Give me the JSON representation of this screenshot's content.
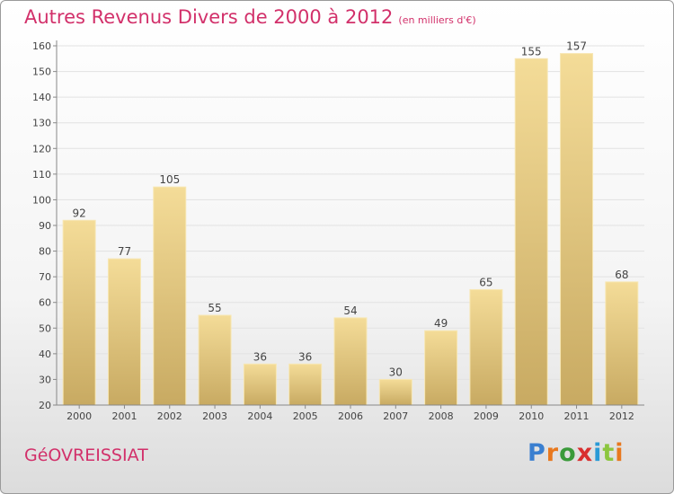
{
  "header": {
    "title": "Autres Revenus Divers de 2000 à 2012",
    "unit": "(en milliers d'€)"
  },
  "footer": {
    "commune": "GéOVREISSIAT",
    "logo": {
      "letters": [
        "P",
        "r",
        "o",
        "x",
        "i",
        "t",
        "i"
      ],
      "colors": [
        "#3a7fd0",
        "#e8781e",
        "#3a9a3a",
        "#d92f2f",
        "#2a9ad6",
        "#8cc63f",
        "#e8781e"
      ]
    }
  },
  "chart_data": {
    "type": "bar",
    "categories": [
      "2000",
      "2001",
      "2002",
      "2003",
      "2004",
      "2005",
      "2006",
      "2007",
      "2008",
      "2009",
      "2010",
      "2011",
      "2012"
    ],
    "values": [
      92,
      77,
      105,
      55,
      36,
      36,
      54,
      30,
      49,
      65,
      155,
      157,
      68
    ],
    "title": "Autres Revenus Divers de 2000 à 2012",
    "ylim": [
      20,
      160
    ],
    "yticks": [
      20,
      30,
      40,
      50,
      60,
      70,
      80,
      90,
      100,
      110,
      120,
      130,
      140,
      150,
      160
    ],
    "grid": true,
    "bar_colors": {
      "light": "#f4dc98",
      "dark": "#c8aa62"
    }
  }
}
